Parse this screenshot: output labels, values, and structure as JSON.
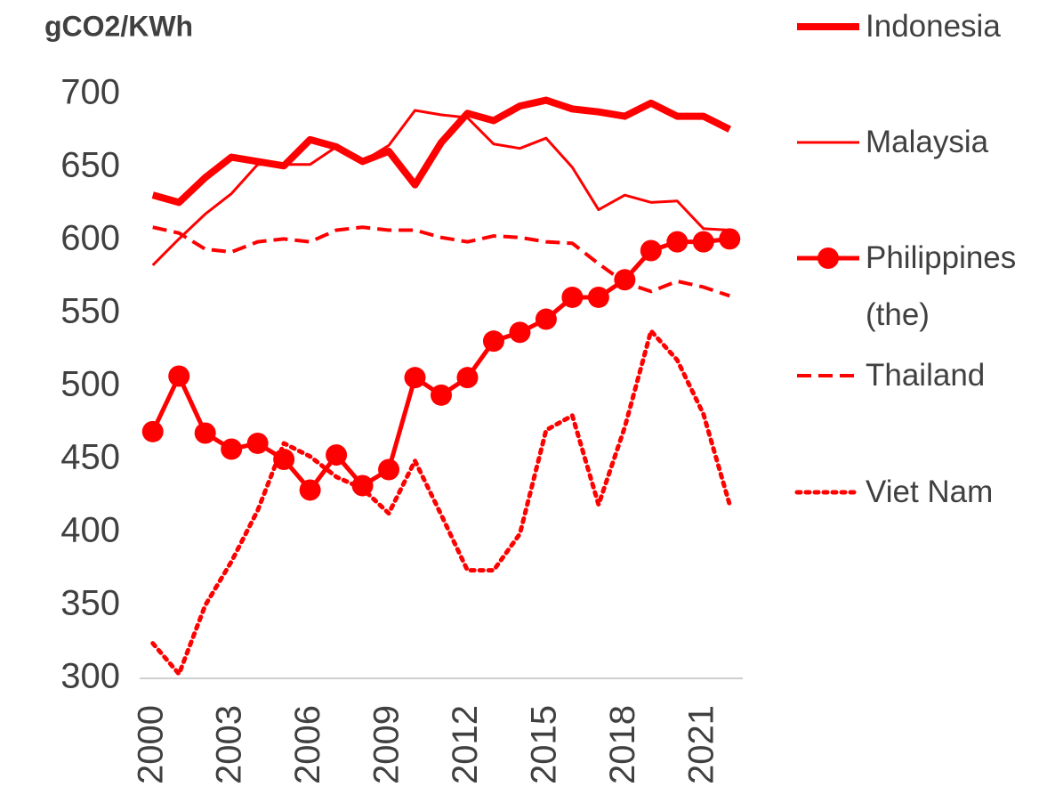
{
  "chart_data": {
    "type": "line",
    "y_label": "gCO2/KWh",
    "x": [
      2000,
      2001,
      2002,
      2003,
      2004,
      2005,
      2006,
      2007,
      2008,
      2009,
      2010,
      2011,
      2012,
      2013,
      2014,
      2015,
      2016,
      2017,
      2018,
      2019,
      2020,
      2021,
      2022
    ],
    "xlim": [
      1999.5,
      2022.5
    ],
    "xticks": [
      2000,
      2003,
      2006,
      2009,
      2012,
      2015,
      2018,
      2021
    ],
    "ylim": [
      300,
      700
    ],
    "yticks": [
      300,
      350,
      400,
      450,
      500,
      550,
      600,
      650,
      700
    ],
    "series": [
      {
        "name": "Indonesia",
        "color": "#ff0000",
        "width": 8,
        "style": "solid",
        "values": [
          631,
          626,
          643,
          657,
          654,
          651,
          669,
          664,
          654,
          661,
          638,
          667,
          687,
          682,
          692,
          696,
          690,
          688,
          685,
          694,
          685,
          685,
          676
        ]
      },
      {
        "name": "Malaysia",
        "color": "#ff0000",
        "width": 3,
        "style": "solid",
        "values": [
          583,
          601,
          618,
          632,
          652,
          652,
          652,
          664,
          654,
          665,
          689,
          686,
          684,
          666,
          663,
          670,
          650,
          621,
          631,
          626,
          627,
          608,
          607
        ]
      },
      {
        "name": "Philippines (the)",
        "color": "#ff0000",
        "width": 5,
        "style": "solid",
        "marker": "circle",
        "values": [
          469,
          507,
          468,
          457,
          461,
          450,
          429,
          453,
          432,
          443,
          506,
          494,
          506,
          531,
          537,
          546,
          561,
          561,
          573,
          593,
          599,
          599,
          601
        ]
      },
      {
        "name": "Thailand",
        "color": "#ff0000",
        "width": 4,
        "style": "dashed",
        "values": [
          609,
          605,
          594,
          592,
          599,
          601,
          599,
          607,
          609,
          607,
          607,
          602,
          599,
          603,
          602,
          599,
          598,
          584,
          571,
          565,
          572,
          568,
          562
        ]
      },
      {
        "name": "Viet Nam",
        "color": "#ff0000",
        "width": 5,
        "style": "dotted",
        "values": [
          324,
          303,
          350,
          380,
          415,
          461,
          452,
          438,
          430,
          413,
          449,
          412,
          374,
          374,
          399,
          470,
          480,
          419,
          472,
          538,
          518,
          481,
          419
        ]
      }
    ]
  }
}
